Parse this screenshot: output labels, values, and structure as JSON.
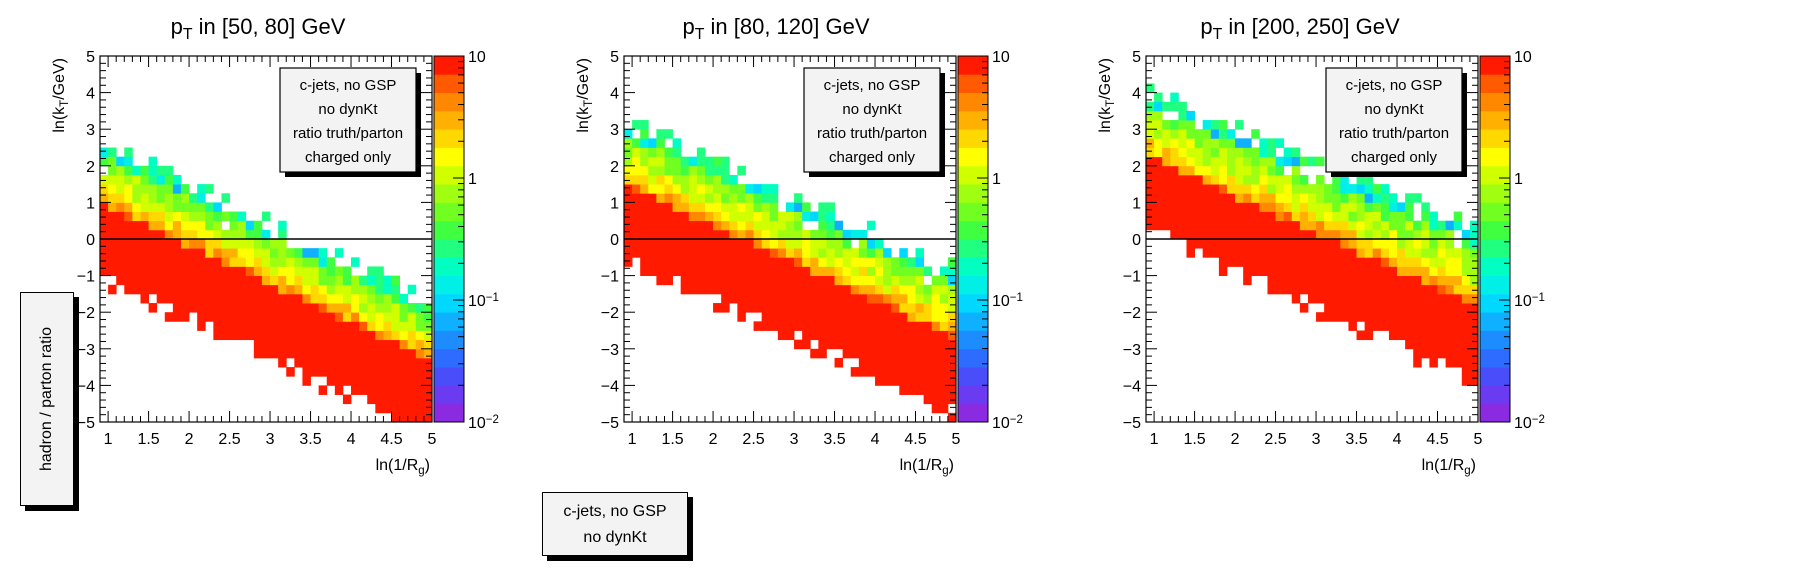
{
  "side_label": "hadron / parton ratio",
  "legend_box": [
    "c-jets, no GSP",
    "no dynKt"
  ],
  "chart_data": [
    {
      "type": "heatmap",
      "title_main": "p",
      "title_sub": "T",
      "title_rest": " in [50, 80] GeV",
      "xlabel": "ln(1/R",
      "xlabel_sub": "g",
      "xlabel_tail": ")",
      "ylabel": "ln(k",
      "ylabel_sub": "T",
      "ylabel_tail": "/GeV)",
      "xlim": [
        0.9,
        5
      ],
      "ylim": [
        -5,
        5
      ],
      "xticks": [
        "1",
        "1.5",
        "2",
        "2.5",
        "3",
        "3.5",
        "4",
        "4.5",
        "5"
      ],
      "yticks": [
        "−5",
        "−4",
        "−3",
        "−2",
        "−1",
        "0",
        "1",
        "2",
        "3",
        "4",
        "5"
      ],
      "zscale": "log",
      "zlim": [
        0.01,
        10
      ],
      "zticks": [
        {
          "base": "10",
          "exp": "−2"
        },
        {
          "base": "10",
          "exp": "−1"
        },
        {
          "base": "1",
          "exp": ""
        },
        {
          "base": "10",
          "exp": ""
        }
      ],
      "band": {
        "upper_at_x1": 2.4,
        "upper_at_x5": -1.9,
        "lower_at_x1": 0.6,
        "lower_at_x5": -3.6,
        "x_end": 5
      },
      "legend": [
        "c-jets, no GSP",
        "no dynKt",
        "ratio truth/parton",
        "charged only"
      ],
      "reference_line_y": 0,
      "grid": false
    },
    {
      "type": "heatmap",
      "title_main": "p",
      "title_sub": "T",
      "title_rest": " in [80, 120] GeV",
      "xlabel": "ln(1/R",
      "xlabel_sub": "g",
      "xlabel_tail": ")",
      "ylabel": "ln(k",
      "ylabel_sub": "T",
      "ylabel_tail": "/GeV)",
      "xlim": [
        0.9,
        5
      ],
      "ylim": [
        -5,
        5
      ],
      "xticks": [
        "1",
        "1.5",
        "2",
        "2.5",
        "3",
        "3.5",
        "4",
        "4.5",
        "5"
      ],
      "yticks": [
        "−5",
        "−4",
        "−3",
        "−2",
        "−1",
        "0",
        "1",
        "2",
        "3",
        "4",
        "5"
      ],
      "zscale": "log",
      "zlim": [
        0.01,
        10
      ],
      "zticks": [
        {
          "base": "10",
          "exp": "−2"
        },
        {
          "base": "10",
          "exp": "−1"
        },
        {
          "base": "1",
          "exp": ""
        },
        {
          "base": "10",
          "exp": ""
        }
      ],
      "band": {
        "upper_at_x1": 3.0,
        "upper_at_x5": -1.0,
        "lower_at_x1": 1.1,
        "lower_at_x5": -3.0,
        "x_end": 5
      },
      "legend": [
        "c-jets, no GSP",
        "no dynKt",
        "ratio truth/parton",
        "charged only"
      ],
      "reference_line_y": 0,
      "grid": false
    },
    {
      "type": "heatmap",
      "title_main": "p",
      "title_sub": "T",
      "title_rest": " in [200, 250] GeV",
      "xlabel": "ln(1/R",
      "xlabel_sub": "g",
      "xlabel_tail": ")",
      "ylabel": "ln(k",
      "ylabel_sub": "T",
      "ylabel_tail": "/GeV)",
      "xlim": [
        0.9,
        5
      ],
      "ylim": [
        -5,
        5
      ],
      "xticks": [
        "1",
        "1.5",
        "2",
        "2.5",
        "3",
        "3.5",
        "4",
        "4.5",
        "5"
      ],
      "yticks": [
        "−5",
        "−4",
        "−3",
        "−2",
        "−1",
        "0",
        "1",
        "2",
        "3",
        "4",
        "5"
      ],
      "zscale": "log",
      "zlim": [
        0.01,
        10
      ],
      "zticks": [
        {
          "base": "10",
          "exp": "−2"
        },
        {
          "base": "10",
          "exp": "−1"
        },
        {
          "base": "1",
          "exp": ""
        },
        {
          "base": "10",
          "exp": ""
        }
      ],
      "band": {
        "upper_at_x1": 3.8,
        "upper_at_x5": 0.1,
        "lower_at_x1": 1.9,
        "lower_at_x5": -2.2,
        "x_end": 5
      },
      "legend": [
        "c-jets, no GSP",
        "no dynKt",
        "ratio truth/parton",
        "charged only"
      ],
      "reference_line_y": 0,
      "grid": false
    }
  ]
}
